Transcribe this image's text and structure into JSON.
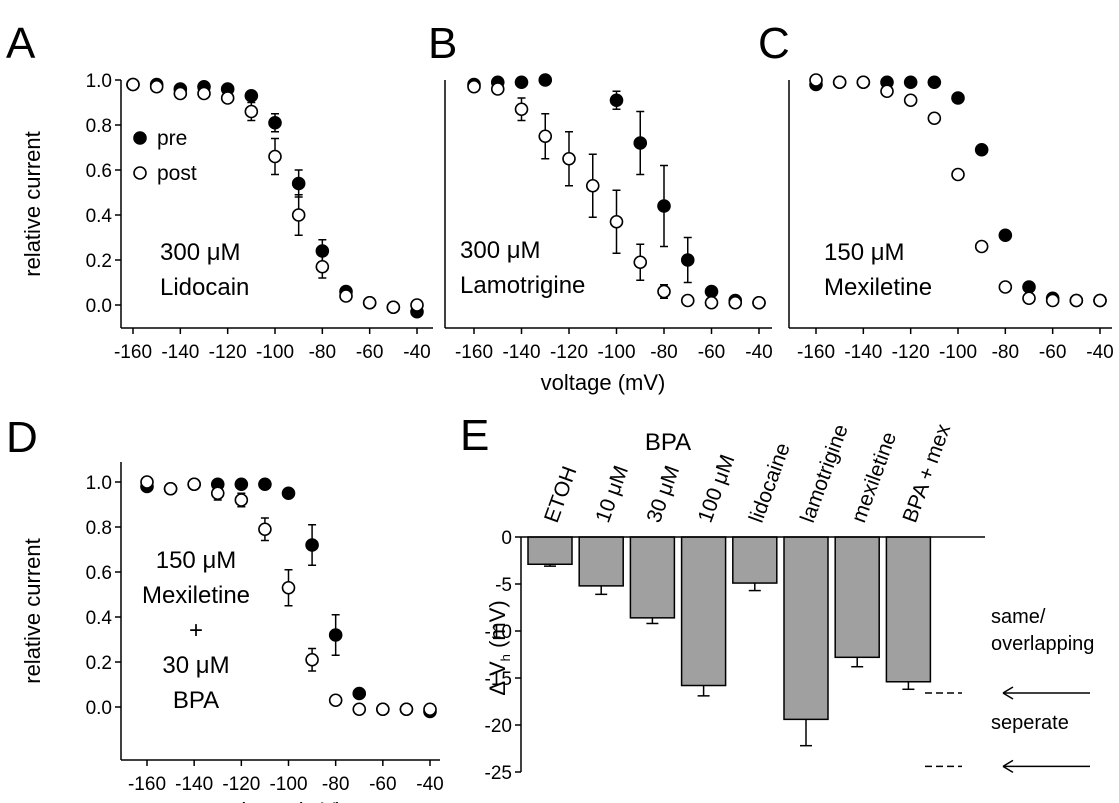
{
  "chart_data": [
    {
      "panel_letter": "A",
      "type": "scatter",
      "ylabel": "relative current",
      "xlim": [
        -160,
        -40
      ],
      "ylim": [
        0,
        1.0
      ],
      "x_ticks": [
        "-160",
        "-140",
        "-120",
        "-100",
        "-80",
        "-60",
        "-40"
      ],
      "y_ticks": [
        "0.0",
        "0.2",
        "0.4",
        "0.6",
        "0.8",
        "1.0"
      ],
      "legend": [
        {
          "marker": "filled",
          "label": "pre"
        },
        {
          "marker": "open",
          "label": "post"
        }
      ],
      "annotation": [
        "300 μM",
        "Lidocain"
      ],
      "series": [
        {
          "name": "pre",
          "marker": "filled",
          "x": [
            -160,
            -150,
            -140,
            -130,
            -120,
            -110,
            -100,
            -90,
            -80,
            -70,
            -60,
            -50,
            -40
          ],
          "y": [
            0.98,
            0.98,
            0.96,
            0.97,
            0.96,
            0.93,
            0.81,
            0.54,
            0.24,
            0.06,
            0.01,
            -0.01,
            -0.03
          ],
          "err": [
            0.01,
            0.01,
            0.01,
            0.01,
            0.02,
            0.02,
            0.04,
            0.06,
            0.05,
            0.02,
            0.01,
            0.01,
            0.01
          ]
        },
        {
          "name": "post",
          "marker": "open",
          "x": [
            -160,
            -150,
            -140,
            -130,
            -120,
            -110,
            -100,
            -90,
            -80,
            -70,
            -60,
            -50,
            -40
          ],
          "y": [
            0.98,
            0.97,
            0.94,
            0.94,
            0.92,
            0.86,
            0.66,
            0.4,
            0.17,
            0.04,
            0.01,
            -0.01,
            0.0
          ],
          "err": [
            0.01,
            0.01,
            0.02,
            0.02,
            0.02,
            0.04,
            0.08,
            0.09,
            0.05,
            0.02,
            0.01,
            0.01,
            0.01
          ]
        }
      ]
    },
    {
      "panel_letter": "B",
      "type": "scatter",
      "xlim": [
        -160,
        -40
      ],
      "ylim": [
        0,
        1.0
      ],
      "x_ticks": [
        "-160",
        "-140",
        "-120",
        "-100",
        "-80",
        "-60",
        "-40"
      ],
      "annotation": [
        "300 μM",
        "Lamotrigine"
      ],
      "series": [
        {
          "name": "pre",
          "marker": "filled",
          "x": [
            -160,
            -150,
            -140,
            -130,
            -100,
            -90,
            -80,
            -70,
            -60,
            -50,
            -40
          ],
          "y": [
            0.98,
            0.99,
            0.99,
            1.0,
            0.91,
            0.72,
            0.44,
            0.2,
            0.06,
            0.02,
            0.01
          ],
          "err": [
            0.01,
            0.01,
            0.01,
            0.01,
            0.04,
            0.14,
            0.18,
            0.1,
            0.02,
            0.01,
            0.01
          ]
        },
        {
          "name": "post",
          "marker": "open",
          "x": [
            -160,
            -150,
            -140,
            -130,
            -120,
            -110,
            -100,
            -90,
            -80,
            -70,
            -60,
            -50,
            -40
          ],
          "y": [
            0.97,
            0.96,
            0.87,
            0.75,
            0.65,
            0.53,
            0.37,
            0.19,
            0.06,
            0.02,
            0.01,
            0.01,
            0.01
          ],
          "err": [
            0.01,
            0.02,
            0.05,
            0.1,
            0.12,
            0.14,
            0.14,
            0.08,
            0.03,
            0.01,
            0.01,
            0.01,
            0.01
          ]
        }
      ]
    },
    {
      "panel_letter": "C",
      "type": "scatter",
      "xlim": [
        -160,
        -40
      ],
      "ylim": [
        0,
        1.0
      ],
      "x_ticks": [
        "-160",
        "-140",
        "-120",
        "-100",
        "-80",
        "-60",
        "-40"
      ],
      "annotation": [
        "150 μM",
        "Mexiletine"
      ],
      "series": [
        {
          "name": "pre",
          "marker": "filled",
          "x": [
            -160,
            -150,
            -140,
            -130,
            -120,
            -110,
            -100,
            -90,
            -80,
            -70,
            -60,
            -50,
            -40
          ],
          "y": [
            0.98,
            0.99,
            0.99,
            0.99,
            0.99,
            0.99,
            0.92,
            0.69,
            0.31,
            0.08,
            0.03,
            0.02,
            0.02
          ],
          "err": [
            0.01,
            0.01,
            0.01,
            0.01,
            0.01,
            0.01,
            0.01,
            0.02,
            0.02,
            0.01,
            0.01,
            0.01,
            0.01
          ]
        },
        {
          "name": "post",
          "marker": "open",
          "x": [
            -160,
            -150,
            -140,
            -130,
            -120,
            -110,
            -100,
            -90,
            -80,
            -70,
            -60,
            -50,
            -40
          ],
          "y": [
            1.0,
            0.99,
            0.99,
            0.95,
            0.91,
            0.83,
            0.58,
            0.26,
            0.08,
            0.03,
            0.02,
            0.02,
            0.02
          ],
          "err": [
            0.01,
            0.01,
            0.01,
            0.01,
            0.01,
            0.01,
            0.02,
            0.02,
            0.01,
            0.01,
            0.01,
            0.01,
            0.01
          ]
        }
      ]
    },
    {
      "panel_letter": "D",
      "type": "scatter",
      "xlabel": "voltage (mV)",
      "ylabel": "relative current",
      "xlim": [
        -160,
        -40
      ],
      "ylim": [
        0,
        1.0
      ],
      "x_ticks": [
        "-160",
        "-140",
        "-120",
        "-100",
        "-80",
        "-60",
        "-40"
      ],
      "y_ticks": [
        "0.0",
        "0.2",
        "0.4",
        "0.6",
        "0.8",
        "1.0"
      ],
      "annotation": [
        "150 μM",
        "Mexiletine",
        "+",
        "30 μM",
        "BPA"
      ],
      "series": [
        {
          "name": "pre",
          "marker": "filled",
          "x": [
            -160,
            -150,
            -140,
            -130,
            -120,
            -110,
            -100,
            -90,
            -80,
            -70,
            -60,
            -50,
            -40
          ],
          "y": [
            0.98,
            0.97,
            0.99,
            0.99,
            0.99,
            0.99,
            0.95,
            0.72,
            0.32,
            0.06,
            -0.01,
            -0.01,
            -0.02
          ],
          "err": [
            0.01,
            0.01,
            0.01,
            0.01,
            0.01,
            0.01,
            0.01,
            0.09,
            0.09,
            0.02,
            0.01,
            0.01,
            0.01
          ]
        },
        {
          "name": "post",
          "marker": "open",
          "x": [
            -160,
            -150,
            -140,
            -130,
            -120,
            -110,
            -100,
            -90,
            -80,
            -70,
            -60,
            -50,
            -40
          ],
          "y": [
            1.0,
            0.97,
            0.99,
            0.95,
            0.92,
            0.79,
            0.53,
            0.21,
            0.03,
            -0.01,
            -0.01,
            -0.01,
            -0.01
          ],
          "err": [
            0.01,
            0.01,
            0.01,
            0.03,
            0.03,
            0.05,
            0.08,
            0.05,
            0.01,
            0.01,
            0.01,
            0.01,
            0.01
          ]
        }
      ]
    },
    {
      "panel_letter": "E",
      "type": "bar",
      "ylabel": "Δ V",
      "ylabel_sub": "h",
      "ylabel_unit": "(mV)",
      "ylim": [
        -25,
        0
      ],
      "y_ticks": [
        "0",
        "-5",
        "-10",
        "-15",
        "-20",
        "-25"
      ],
      "group_label": "BPA",
      "categories": [
        "ETOH",
        "10 μM",
        "30 μM",
        "100 μM",
        "lidocaine",
        "lamotrigine",
        "mexiletine",
        "BPA + mex"
      ],
      "values": [
        -2.9,
        -5.2,
        -8.6,
        -15.8,
        -4.9,
        -19.4,
        -12.8,
        -15.4
      ],
      "errors": [
        0.2,
        0.9,
        0.6,
        1.1,
        0.8,
        2.8,
        1.0,
        0.8
      ],
      "references": [
        {
          "label": "same/\noverlapping",
          "value": -16.6
        },
        {
          "label": "seperate",
          "value": -24.4
        }
      ]
    }
  ],
  "shared_xlabel": "voltage (mV)"
}
